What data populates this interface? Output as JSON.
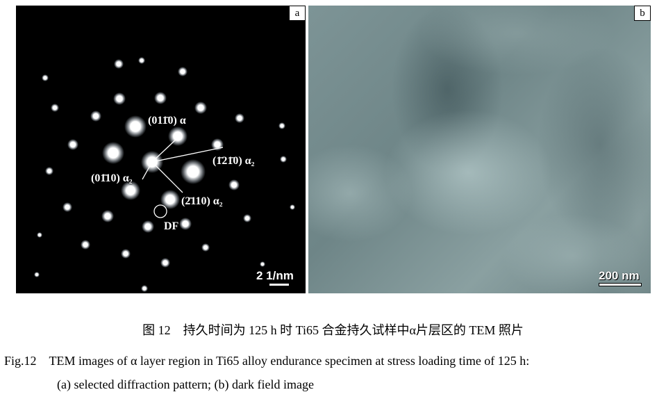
{
  "panel_a": {
    "tag": "a",
    "labels": {
      "alpha_0110": "(011̄0) α",
      "alpha2_1210": "(1̄21̄0) α₂",
      "alpha2_0110": "(01̄10) α₂",
      "alpha2_2110": "(2̄110) α₂",
      "df": "DF"
    },
    "scale_bar": "2 1/nm"
  },
  "panel_b": {
    "tag": "b",
    "scale_bar": "200 nm"
  },
  "caption": {
    "cn": "图 12　持久时间为 125 h 时 Ti65 合金持久试样中α片层区的 TEM 照片",
    "en_line1": "Fig.12　TEM images of α layer region in Ti65 alloy endurance specimen at stress loading time of 125 h:",
    "en_line2": "(a) selected diffraction pattern; (b) dark field image"
  }
}
